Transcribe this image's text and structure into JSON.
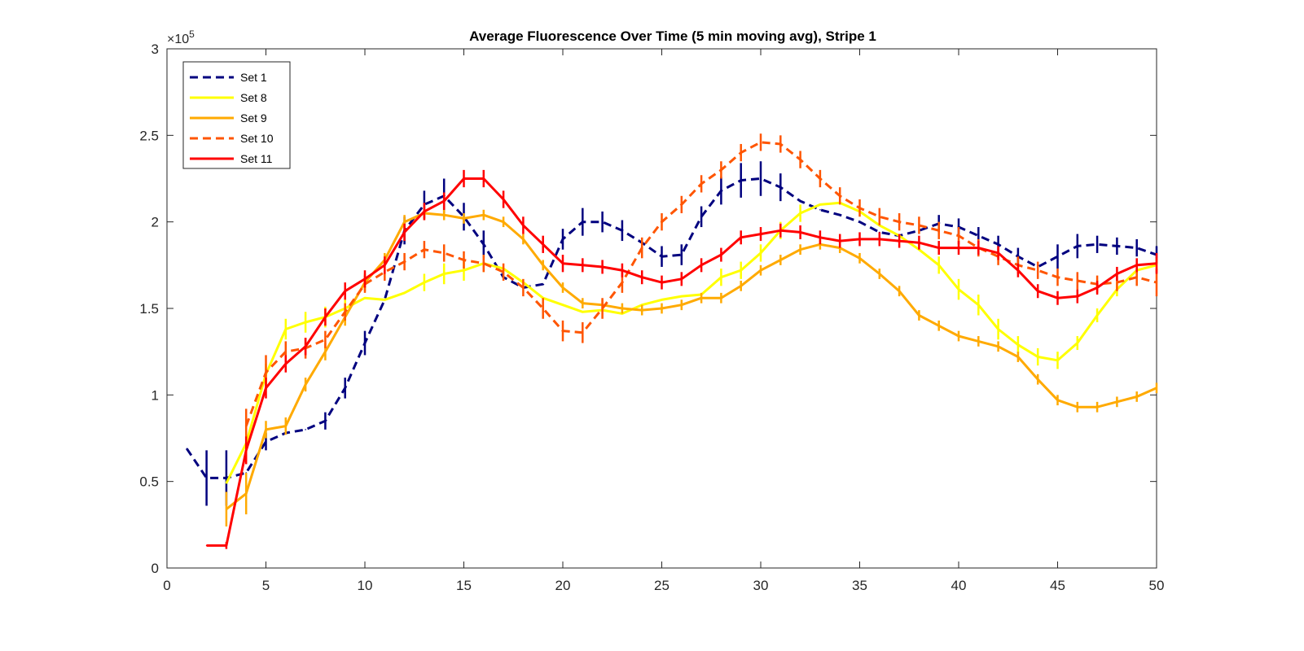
{
  "chart_data": {
    "type": "line",
    "title": "Average Fluorescence Over Time (5 min moving avg), Stripe 1",
    "xlabel": "",
    "ylabel": "",
    "xlim": [
      0,
      50
    ],
    "ylim": [
      0,
      300000
    ],
    "x_ticks": [
      0,
      5,
      10,
      15,
      20,
      25,
      30,
      35,
      40,
      45,
      50
    ],
    "x_tick_labels": [
      "0",
      "5",
      "10",
      "15",
      "20",
      "25",
      "30",
      "35",
      "40",
      "45",
      "50"
    ],
    "y_ticks": [
      0,
      50000,
      100000,
      150000,
      200000,
      250000,
      300000
    ],
    "y_tick_labels": [
      "0",
      "0.5",
      "1",
      "1.5",
      "2",
      "2.5",
      "3"
    ],
    "y_exponent_base": "×10",
    "y_exponent_power": "5",
    "grid": false,
    "legend_position": "top-left",
    "series": [
      {
        "name": "Set 1",
        "color": "#00007f",
        "dashed": true,
        "x": [
          1,
          2,
          3,
          4,
          5,
          6,
          7,
          8,
          9,
          10,
          11,
          12,
          13,
          14,
          15,
          16,
          17,
          18,
          19,
          20,
          21,
          22,
          23,
          24,
          25,
          26,
          27,
          28,
          29,
          30,
          31,
          32,
          33,
          34,
          35,
          36,
          37,
          38,
          39,
          40,
          41,
          42,
          43,
          44,
          45,
          46,
          47,
          48,
          49,
          50
        ],
        "y": [
          69000,
          52000,
          52000,
          55000,
          73000,
          78000,
          80000,
          85000,
          104000,
          130000,
          155000,
          195000,
          210000,
          215000,
          203000,
          187000,
          168000,
          162000,
          164000,
          190000,
          200000,
          200000,
          195000,
          188000,
          180000,
          181000,
          203000,
          218000,
          224000,
          225000,
          220000,
          212000,
          207000,
          204000,
          200000,
          194000,
          192000,
          195000,
          199000,
          197000,
          192000,
          187000,
          180000,
          174000,
          180000,
          186000,
          187000,
          186000,
          185000,
          181000
        ],
        "err": [
          0,
          16000,
          16000,
          0,
          5000,
          0,
          0,
          5000,
          6000,
          7000,
          0,
          8000,
          8000,
          10000,
          8000,
          8000,
          0,
          0,
          0,
          6000,
          8000,
          6000,
          6000,
          0,
          6000,
          6000,
          6000,
          8000,
          10000,
          10000,
          8000,
          0,
          0,
          0,
          0,
          0,
          0,
          0,
          5000,
          5000,
          5000,
          5000,
          5000,
          0,
          7000,
          7000,
          5000,
          5000,
          5000,
          5000
        ]
      },
      {
        "name": "Set 8",
        "color": "#ffff00",
        "dashed": false,
        "x": [
          3,
          4,
          5,
          6,
          7,
          8,
          9,
          10,
          11,
          12,
          13,
          14,
          15,
          16,
          17,
          18,
          19,
          20,
          21,
          22,
          23,
          24,
          25,
          26,
          27,
          28,
          29,
          30,
          31,
          32,
          33,
          34,
          35,
          36,
          37,
          38,
          39,
          40,
          41,
          42,
          43,
          44,
          45,
          46,
          47,
          48,
          49,
          50
        ],
        "y": [
          49000,
          72000,
          112000,
          138000,
          142000,
          145000,
          150000,
          156000,
          155000,
          159000,
          165000,
          170000,
          172000,
          176000,
          173000,
          165000,
          156000,
          152000,
          148000,
          149000,
          147000,
          152000,
          155000,
          157000,
          158000,
          168000,
          172000,
          182000,
          195000,
          205000,
          210000,
          211000,
          206000,
          198000,
          192000,
          184000,
          175000,
          161000,
          152000,
          138000,
          129000,
          122000,
          120000,
          130000,
          146000,
          161000,
          172000,
          175000
        ],
        "err": [
          0,
          0,
          6000,
          6000,
          6000,
          6000,
          5000,
          0,
          0,
          0,
          5000,
          6000,
          6000,
          5000,
          0,
          0,
          0,
          0,
          0,
          0,
          0,
          0,
          0,
          0,
          0,
          5000,
          5000,
          5000,
          5000,
          5000,
          0,
          0,
          0,
          0,
          0,
          0,
          5000,
          6000,
          6000,
          6000,
          5000,
          5000,
          5000,
          4000,
          4000,
          4000,
          4000,
          4000
        ]
      },
      {
        "name": "Set 9",
        "color": "#ffaa00",
        "dashed": false,
        "x": [
          3,
          4,
          5,
          6,
          7,
          8,
          9,
          10,
          11,
          12,
          13,
          14,
          15,
          16,
          17,
          18,
          19,
          20,
          21,
          22,
          23,
          24,
          25,
          26,
          27,
          28,
          29,
          30,
          31,
          32,
          33,
          34,
          35,
          36,
          37,
          38,
          39,
          40,
          41,
          42,
          43,
          44,
          45,
          46,
          47,
          48,
          49,
          50
        ],
        "y": [
          34000,
          43000,
          80000,
          82000,
          106000,
          125000,
          145000,
          165000,
          178000,
          200000,
          205000,
          204000,
          202000,
          204000,
          200000,
          190000,
          175000,
          162000,
          153000,
          152000,
          150000,
          149000,
          150000,
          152000,
          156000,
          156000,
          163000,
          172000,
          178000,
          184000,
          187000,
          185000,
          179000,
          170000,
          160000,
          146000,
          140000,
          134000,
          131000,
          128000,
          122000,
          109000,
          97000,
          93000,
          93000,
          96000,
          99000,
          104000
        ],
        "err": [
          10000,
          12000,
          5000,
          5000,
          4000,
          5000,
          5000,
          5000,
          4000,
          4000,
          4000,
          3000,
          3000,
          3000,
          3000,
          3000,
          3000,
          3000,
          3000,
          3000,
          3000,
          3000,
          3000,
          3000,
          3000,
          3000,
          3000,
          3000,
          3000,
          3000,
          3000,
          3000,
          3000,
          3000,
          3000,
          3000,
          3000,
          3000,
          3000,
          3000,
          3000,
          3000,
          3000,
          3000,
          3000,
          3000,
          3000,
          3000
        ]
      },
      {
        "name": "Set 10",
        "color": "#ff5500",
        "dashed": true,
        "x": [
          4,
          5,
          6,
          7,
          8,
          9,
          10,
          11,
          12,
          13,
          14,
          15,
          16,
          17,
          18,
          19,
          20,
          21,
          22,
          23,
          24,
          25,
          26,
          27,
          28,
          29,
          30,
          31,
          32,
          33,
          34,
          35,
          36,
          37,
          38,
          39,
          40,
          41,
          42,
          43,
          44,
          45,
          46,
          47,
          48,
          49,
          50
        ],
        "y": [
          82000,
          113000,
          125000,
          127000,
          132000,
          148000,
          164000,
          171000,
          177000,
          184000,
          182000,
          178000,
          176000,
          171000,
          162000,
          150000,
          137000,
          136000,
          150000,
          165000,
          185000,
          200000,
          210000,
          222000,
          230000,
          240000,
          246000,
          245000,
          236000,
          225000,
          215000,
          208000,
          203000,
          200000,
          198000,
          195000,
          192000,
          185000,
          180000,
          175000,
          172000,
          168000,
          166000,
          164000,
          165000,
          168000,
          165000
        ],
        "err": [
          10000,
          10000,
          6000,
          6000,
          5000,
          5000,
          5000,
          5000,
          5000,
          5000,
          5000,
          5000,
          5000,
          5000,
          5000,
          6000,
          6000,
          6000,
          6000,
          6000,
          6000,
          5000,
          5000,
          5000,
          5000,
          5000,
          5000,
          5000,
          5000,
          5000,
          5000,
          5000,
          5000,
          5000,
          5000,
          5000,
          5000,
          5000,
          5000,
          5000,
          5000,
          5000,
          5000,
          5000,
          5000,
          5000,
          8000
        ]
      },
      {
        "name": "Set 11",
        "color": "#ff0000",
        "dashed": false,
        "x": [
          2,
          3,
          4,
          5,
          6,
          7,
          8,
          9,
          10,
          11,
          12,
          13,
          14,
          15,
          16,
          17,
          18,
          19,
          20,
          21,
          22,
          23,
          24,
          25,
          26,
          27,
          28,
          29,
          30,
          31,
          32,
          33,
          34,
          35,
          36,
          37,
          38,
          39,
          40,
          41,
          42,
          43,
          44,
          45,
          46,
          47,
          48,
          49,
          50
        ],
        "y": [
          13000,
          13000,
          68000,
          104000,
          118000,
          128000,
          145000,
          160000,
          167000,
          175000,
          194000,
          206000,
          212000,
          225000,
          225000,
          213000,
          198000,
          187000,
          176000,
          175000,
          174000,
          172000,
          168000,
          165000,
          167000,
          175000,
          181000,
          191000,
          193000,
          195000,
          194000,
          191000,
          189000,
          190000,
          190000,
          189000,
          188000,
          185000,
          185000,
          185000,
          182000,
          172000,
          160000,
          156000,
          157000,
          162000,
          170000,
          175000,
          176000
        ],
        "err": [
          0,
          2000,
          8000,
          6000,
          5000,
          5000,
          5000,
          5000,
          5000,
          5000,
          5000,
          5000,
          5000,
          5000,
          5000,
          5000,
          5000,
          5000,
          5000,
          4000,
          4000,
          4000,
          4000,
          4000,
          4000,
          4000,
          4000,
          4000,
          4000,
          4000,
          4000,
          4000,
          4000,
          4000,
          4000,
          4000,
          4000,
          4000,
          4000,
          4000,
          4000,
          4000,
          4000,
          4000,
          4000,
          4000,
          4000,
          4000,
          6000
        ]
      }
    ]
  }
}
